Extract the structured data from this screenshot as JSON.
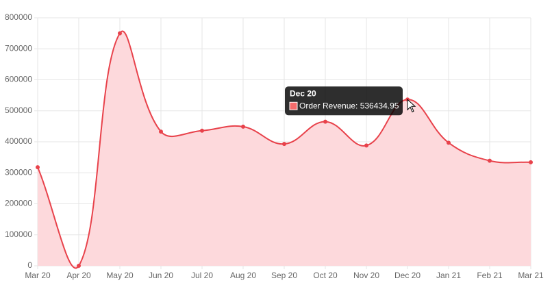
{
  "chart_data": {
    "type": "line",
    "categories": [
      "Mar 20",
      "Apr 20",
      "May 20",
      "Jun 20",
      "Jul 20",
      "Aug 20",
      "Sep 20",
      "Oct 20",
      "Nov 20",
      "Dec 20",
      "Jan 21",
      "Feb 21",
      "Mar 21"
    ],
    "series": [
      {
        "name": "Order Revenue",
        "color": "#e8424b",
        "fill": "#fdd9dc",
        "values": [
          318000,
          0,
          750000,
          433000,
          436000,
          449000,
          393000,
          465000,
          388000,
          536434.95,
          397000,
          339000,
          334000
        ]
      }
    ],
    "ylim": [
      0,
      800000
    ],
    "yticks": [
      0,
      100000,
      200000,
      300000,
      400000,
      500000,
      600000,
      700000,
      800000
    ],
    "grid": true,
    "tooltip": {
      "title": "Dec 20",
      "label": "Order Revenue: 536434.95"
    }
  }
}
